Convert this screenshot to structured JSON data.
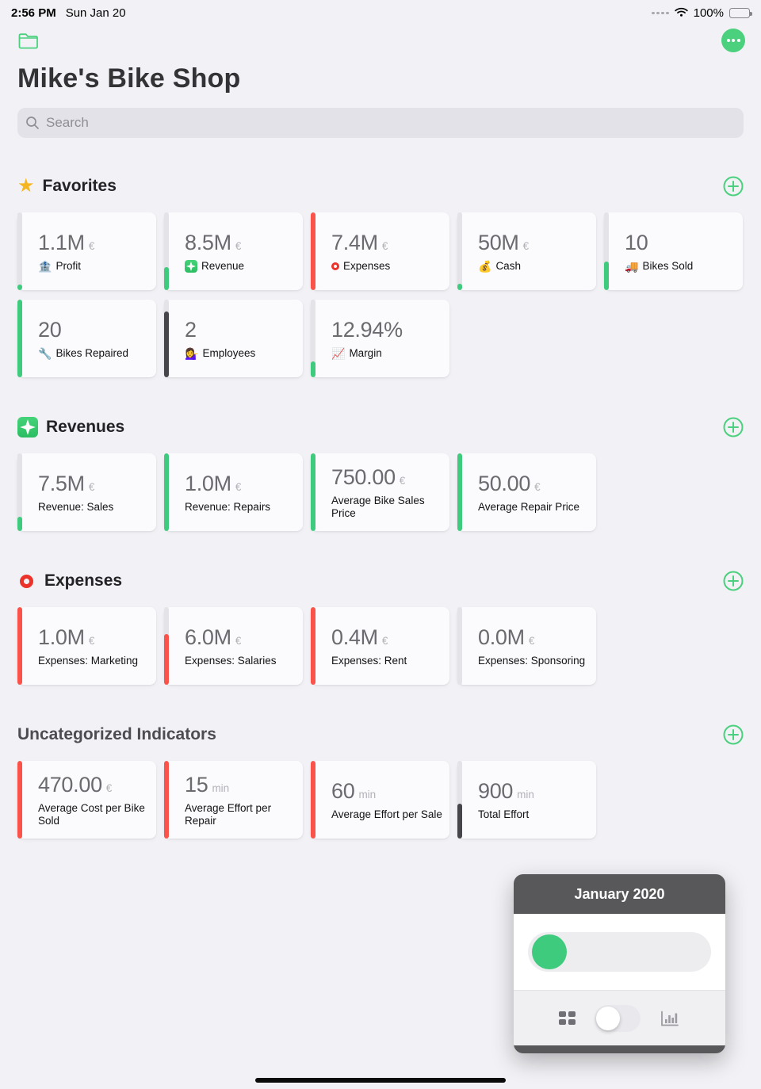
{
  "status_bar": {
    "time": "2:56 PM",
    "date": "Sun Jan 20",
    "battery_percent": "100%"
  },
  "header": {
    "title": "Mike's Bike Shop"
  },
  "search": {
    "placeholder": "Search"
  },
  "colors": {
    "green": "#3ecb7d",
    "red": "#fb524a",
    "dark": "#46464a",
    "track": "#e3e3e8",
    "accent": "#4bd07e",
    "panel_dark": "#58585a"
  },
  "sections": [
    {
      "title": "Favorites",
      "icon": {
        "name": "favorites-star-icon",
        "kind": "star"
      },
      "cards": [
        {
          "value": "1.1M",
          "unit": "€",
          "label": "Profit",
          "icon": {
            "name": "bank-icon",
            "kind": "emoji",
            "glyph": "🏦"
          },
          "bar": {
            "color": "green",
            "fill": 0.07
          }
        },
        {
          "value": "8.5M",
          "unit": "€",
          "label": "Revenue",
          "icon": {
            "name": "revenue-sparkle-icon",
            "kind": "sparkle"
          },
          "bar": {
            "color": "green",
            "fill": 0.3
          }
        },
        {
          "value": "7.4M",
          "unit": "€",
          "label": "Expenses",
          "icon": {
            "name": "expenses-ring-icon",
            "kind": "ring"
          },
          "bar": {
            "color": "red",
            "fill": 1
          }
        },
        {
          "value": "50M",
          "unit": "€",
          "label": "Cash",
          "icon": {
            "name": "money-bag-icon",
            "kind": "emoji",
            "glyph": "💰"
          },
          "bar": {
            "color": "green",
            "fill": 0.08
          }
        },
        {
          "value": "10",
          "unit": "",
          "label": "Bikes Sold",
          "icon": {
            "name": "truck-icon",
            "kind": "emoji",
            "glyph": "🚚"
          },
          "bar": {
            "color": "green",
            "fill": 0.37
          }
        },
        {
          "value": "20",
          "unit": "",
          "label": "Bikes Repaired",
          "icon": {
            "name": "wrench-icon",
            "kind": "emoji",
            "glyph": "🔧"
          },
          "bar": {
            "color": "green",
            "fill": 1
          }
        },
        {
          "value": "2",
          "unit": "",
          "label": "Employees",
          "icon": {
            "name": "employee-icon",
            "kind": "emoji",
            "glyph": "💁‍♀️"
          },
          "bar": {
            "color": "dark",
            "fill": 0.85
          }
        },
        {
          "value": "12.94%",
          "unit": "",
          "label": "Margin",
          "icon": {
            "name": "chart-up-icon",
            "kind": "emoji",
            "glyph": "📈"
          },
          "bar": {
            "color": "green",
            "fill": 0.2
          }
        }
      ]
    },
    {
      "title": "Revenues",
      "icon": {
        "name": "revenues-sparkle-icon",
        "kind": "sparkle"
      },
      "cards": [
        {
          "value": "7.5M",
          "unit": "€",
          "label": "Revenue: Sales",
          "icon": null,
          "bar": {
            "color": "green",
            "fill": 0.18
          }
        },
        {
          "value": "1.0M",
          "unit": "€",
          "label": "Revenue: Repairs",
          "icon": null,
          "bar": {
            "color": "green",
            "fill": 1
          }
        },
        {
          "value": "750.00",
          "unit": "€",
          "label": "Average Bike Sales Price",
          "icon": null,
          "bar": {
            "color": "green",
            "fill": 1
          }
        },
        {
          "value": "50.00",
          "unit": "€",
          "label": "Average Repair Price",
          "icon": null,
          "bar": {
            "color": "green",
            "fill": 1
          }
        }
      ]
    },
    {
      "title": "Expenses",
      "icon": {
        "name": "expenses-ring-icon",
        "kind": "ring"
      },
      "cards": [
        {
          "value": "1.0M",
          "unit": "€",
          "label": "Expenses: Marketing",
          "icon": null,
          "bar": {
            "color": "red",
            "fill": 1
          }
        },
        {
          "value": "6.0M",
          "unit": "€",
          "label": "Expenses: Salaries",
          "icon": null,
          "bar": {
            "color": "red",
            "fill": 0.65
          }
        },
        {
          "value": "0.4M",
          "unit": "€",
          "label": "Expenses: Rent",
          "icon": null,
          "bar": {
            "color": "red",
            "fill": 1
          }
        },
        {
          "value": "0.0M",
          "unit": "€",
          "label": "Expenses: Sponsoring",
          "icon": null,
          "bar": {
            "color": "red",
            "fill": 0
          }
        }
      ]
    },
    {
      "title": "Uncategorized Indicators",
      "title_muted": true,
      "icon": null,
      "cards": [
        {
          "value": "470.00",
          "unit": "€",
          "label": "Average Cost per Bike Sold",
          "icon": null,
          "bar": {
            "color": "red",
            "fill": 1
          }
        },
        {
          "value": "15",
          "unit": "min",
          "label": "Average Effort per Repair",
          "icon": null,
          "bar": {
            "color": "red",
            "fill": 1
          }
        },
        {
          "value": "60",
          "unit": "min",
          "label": "Average Effort per Sale",
          "icon": null,
          "bar": {
            "color": "red",
            "fill": 1
          }
        },
        {
          "value": "900",
          "unit": "min",
          "label": "Total Effort",
          "icon": null,
          "bar": {
            "color": "dark",
            "fill": 0.45
          }
        }
      ]
    }
  ],
  "panel": {
    "title": "January 2020",
    "toggle_state": "off",
    "slider_position": "start"
  }
}
